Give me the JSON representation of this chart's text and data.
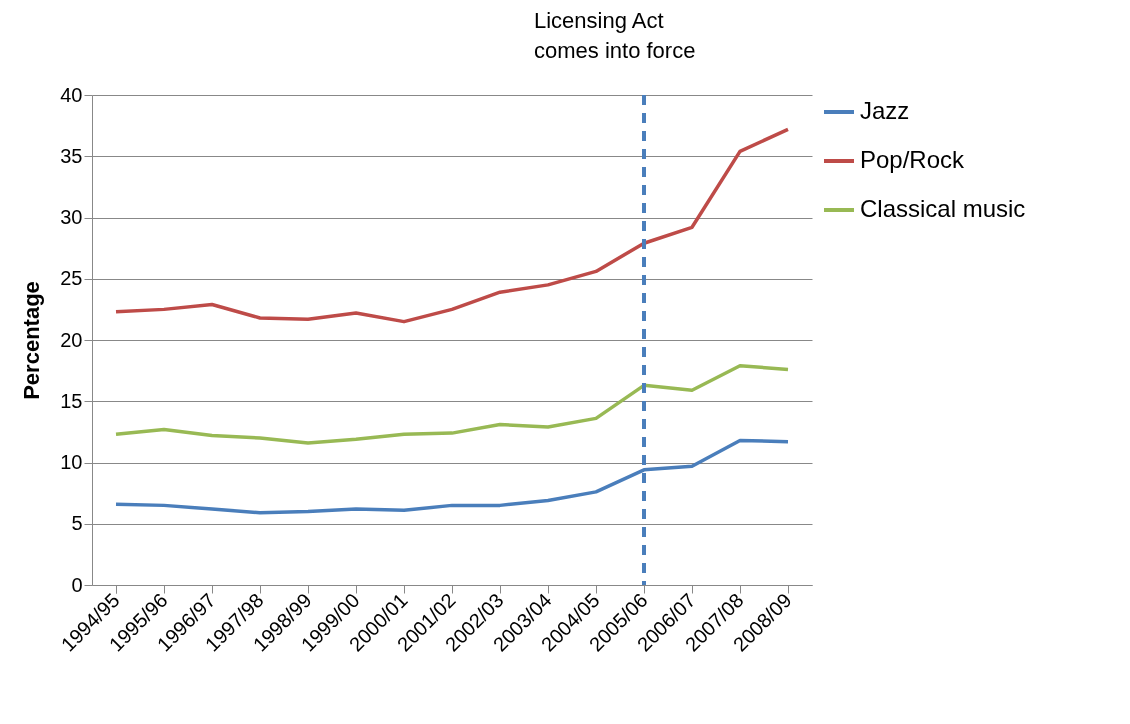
{
  "chart_data": {
    "type": "line",
    "ylabel": "Percentage",
    "categories": [
      "1994/95",
      "1995/96",
      "1996/97",
      "1997/98",
      "1998/99",
      "1999/00",
      "2000/01",
      "2001/02",
      "2002/03",
      "2003/04",
      "2004/05",
      "2005/06",
      "2006/07",
      "2007/08",
      "2008/09"
    ],
    "series": [
      {
        "name": "Jazz",
        "color": "#4a7ebb",
        "values": [
          6.6,
          6.5,
          6.2,
          5.9,
          6.0,
          6.2,
          6.1,
          6.5,
          6.5,
          6.9,
          7.6,
          9.4,
          9.7,
          11.8,
          11.7
        ]
      },
      {
        "name": "Pop/Rock",
        "color": "#be4b48",
        "values": [
          22.3,
          22.5,
          22.9,
          21.8,
          21.7,
          22.2,
          21.5,
          22.5,
          23.9,
          24.5,
          25.6,
          27.9,
          29.2,
          35.4,
          37.2
        ]
      },
      {
        "name": "Classical music",
        "color": "#98b954",
        "values": [
          12.3,
          12.7,
          12.2,
          12.0,
          11.6,
          11.9,
          12.3,
          12.4,
          13.1,
          12.9,
          13.6,
          16.3,
          15.9,
          17.9,
          17.6
        ]
      }
    ],
    "ylim": [
      0,
      40
    ],
    "yticks": [
      0,
      5,
      10,
      15,
      20,
      25,
      30,
      35,
      40
    ],
    "grid": "y",
    "legend": "right",
    "marker": "none",
    "line_style": "solid",
    "ref_lines": [
      {
        "axis": "x",
        "value": "2005/06",
        "label": "Licensing Act\ncomes into force",
        "color": "#4a7ebb",
        "line_style": "dashed"
      }
    ]
  }
}
